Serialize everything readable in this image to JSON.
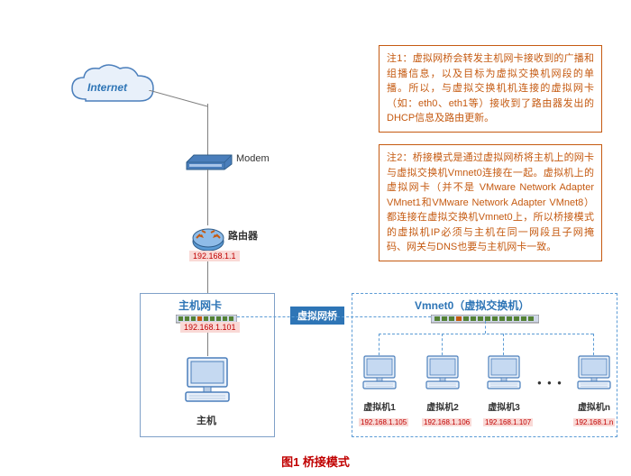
{
  "internet": {
    "label": "Internet"
  },
  "modem": {
    "label": "Modem"
  },
  "router": {
    "label": "路由器",
    "ip": "192.168.1.1"
  },
  "host": {
    "nic_label": "主机网卡",
    "ip": "192.168.1.101",
    "label": "主机"
  },
  "bridge": {
    "tag": "虚拟网桥",
    "vswitch": "Vmnet0（虚拟交换机）"
  },
  "vms": [
    {
      "label": "虚拟机1",
      "ip": "192.168.1.105"
    },
    {
      "label": "虚拟机2",
      "ip": "192.168.1.106"
    },
    {
      "label": "虚拟机3",
      "ip": "192.168.1.107"
    },
    {
      "label": "虚拟机n",
      "ip": "192.168.1.n"
    }
  ],
  "ellipsis": "● ● ●",
  "note1": "注1：虚拟网桥会转发主机网卡接收到的广播和组播信息，以及目标为虚拟交换机网段的单播。所以，与虚拟交换机机连接的虚拟网卡（如：eth0、eth1等）接收到了路由器发出的DHCP信息及路由更新。",
  "note2": "注2：桥接模式是通过虚拟网桥将主机上的网卡与虚拟交换机Vmnet0连接在一起。虚拟机上的虚拟网卡（并不是 VMware Network Adapter VMnet1和VMware Network Adapter VMnet8）都连接在虚拟交换机Vmnet0上，所以桥接模式的虚拟机IP必须与主机在同一网段且子网掩码、网关与DNS也要与主机网卡一致。",
  "caption": "图1 桥接模式",
  "colors": {
    "accent_blue": "#2e75b6",
    "light_blue": "#5b9bd5",
    "dark_red": "#c00000",
    "note_orange": "#c55a11",
    "ip_bg": "#f9d9d6",
    "line_gray": "#7f7f7f"
  }
}
